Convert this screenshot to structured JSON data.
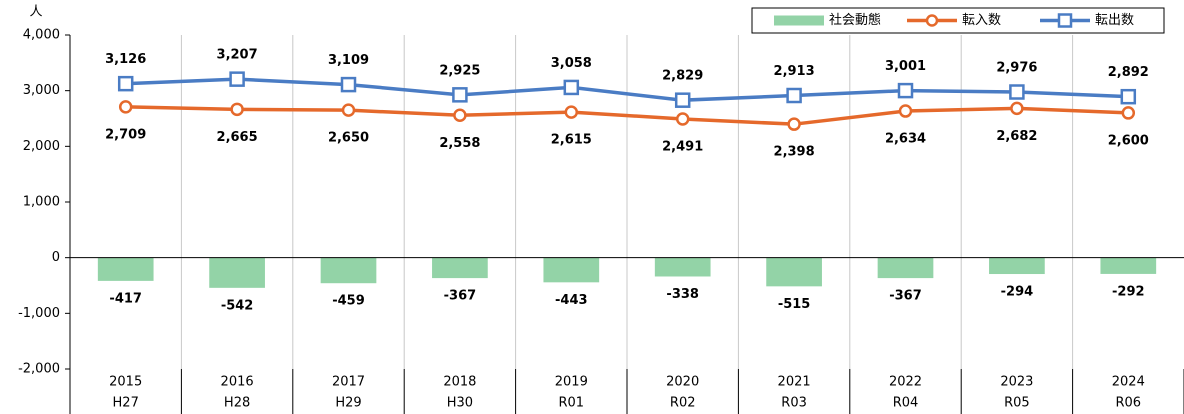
{
  "chart_data": {
    "type": "bar_line",
    "y_unit": "人",
    "categories": [
      "2015",
      "2016",
      "2017",
      "2018",
      "2019",
      "2020",
      "2021",
      "2022",
      "2023",
      "2024"
    ],
    "categories_era": [
      "H27",
      "H28",
      "H29",
      "H30",
      "R01",
      "R02",
      "R03",
      "R04",
      "R05",
      "R06"
    ],
    "ylim": [
      -2000,
      4000
    ],
    "yticks": [
      {
        "value": -2000,
        "label": "-2,000"
      },
      {
        "value": -1000,
        "label": "-1,000"
      },
      0,
      {
        "value": 1000,
        "label": "1,000"
      },
      {
        "value": 2000,
        "label": "2,000"
      },
      {
        "value": 3000,
        "label": "3,000"
      },
      {
        "value": 4000,
        "label": "4,000"
      }
    ],
    "grid": true,
    "legend": "top-right",
    "series": [
      {
        "name": "社会動態",
        "kind": "bar",
        "color": "#93d3a7",
        "label_color": "#000000",
        "values": [
          -417,
          -542,
          -459,
          -367,
          -443,
          -338,
          -515,
          -367,
          -294,
          -292
        ]
      },
      {
        "name": "転入数",
        "kind": "line",
        "marker": "circle",
        "color": "#e5692b",
        "label_color": "#c4541d",
        "values": [
          2709,
          2665,
          2650,
          2558,
          2615,
          2491,
          2398,
          2634,
          2682,
          2600
        ],
        "value_labels": [
          "2,709",
          "2,665",
          "2,650",
          "2,558",
          "2,615",
          "2,491",
          "2,398",
          "2,634",
          "2,682",
          "2,600"
        ]
      },
      {
        "name": "転出数",
        "kind": "line",
        "marker": "square",
        "color": "#4a7cc4",
        "label_color": "#2f5b93",
        "values": [
          3126,
          3207,
          3109,
          2925,
          3058,
          2829,
          2913,
          3001,
          2976,
          2892
        ],
        "value_labels": [
          "3,126",
          "3,207",
          "3,109",
          "2,925",
          "3,058",
          "2,829",
          "2,913",
          "3,001",
          "2,976",
          "2,892"
        ]
      }
    ]
  }
}
